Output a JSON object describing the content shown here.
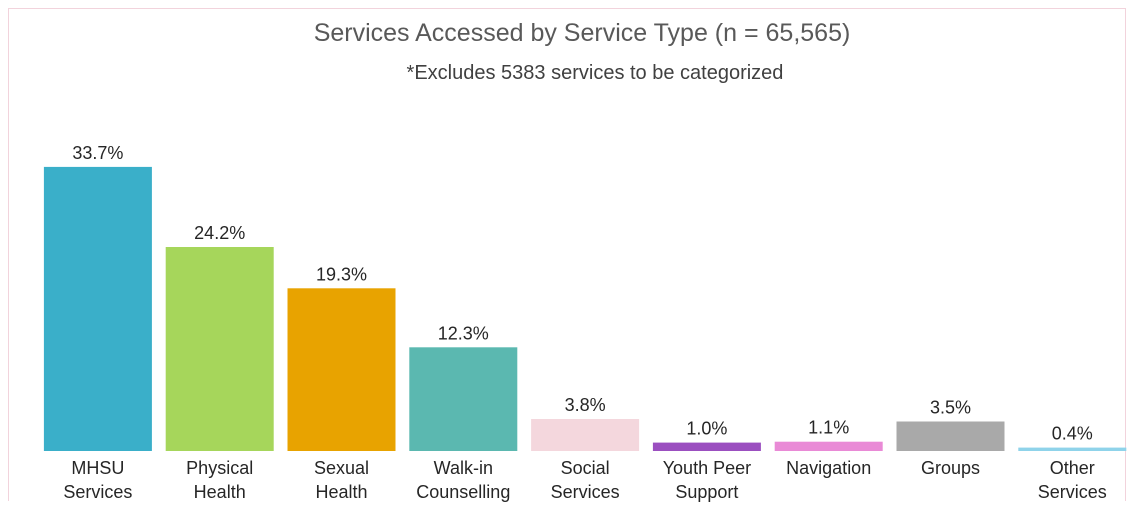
{
  "chart_data": {
    "type": "bar",
    "title": "Services Accessed by Service Type (n = 65,565)",
    "subtitle": "*Excludes 5383 services to be categorized",
    "xlabel": "",
    "ylabel": "",
    "ylim": [
      0,
      40
    ],
    "grid": false,
    "legend": "none",
    "categories": [
      [
        "MHSU",
        "Services"
      ],
      [
        "Physical",
        "Health"
      ],
      [
        "Sexual",
        "Health"
      ],
      [
        "Walk-in",
        "Counselling"
      ],
      [
        "Social",
        "Services"
      ],
      [
        "Youth Peer",
        "Support"
      ],
      [
        "Navigation"
      ],
      [
        "Groups"
      ],
      [
        "Other",
        "Services"
      ]
    ],
    "values": [
      33.7,
      24.2,
      19.3,
      12.3,
      3.8,
      1.0,
      1.1,
      3.5,
      0.4
    ],
    "data_labels": [
      "33.7%",
      "24.2%",
      "19.3%",
      "12.3%",
      "3.8%",
      "1.0%",
      "1.1%",
      "3.5%",
      "0.4%"
    ],
    "colors": [
      "#3aafc9",
      "#a6d65b",
      "#e8a300",
      "#5bb8b0",
      "#f4d7dd",
      "#9b4fc0",
      "#e98ad6",
      "#a9a9a9",
      "#8fd3ea"
    ]
  }
}
